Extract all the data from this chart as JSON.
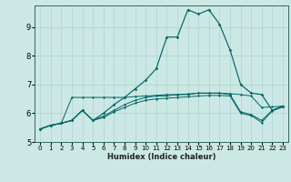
{
  "xlabel": "Humidex (Indice chaleur)",
  "bg_color": "#cce8e4",
  "grid_color": "#b0d8d4",
  "line_color": "#006666",
  "xlim": [
    -0.5,
    23.5
  ],
  "ylim": [
    5.0,
    9.75
  ],
  "xticks": [
    0,
    1,
    2,
    3,
    4,
    5,
    6,
    7,
    8,
    9,
    10,
    11,
    12,
    13,
    14,
    15,
    16,
    17,
    18,
    19,
    20,
    21,
    22,
    23
  ],
  "yticks": [
    5,
    6,
    7,
    8,
    9
  ],
  "line_main_x": [
    0,
    1,
    2,
    3,
    4,
    5,
    6,
    7,
    8,
    9,
    10,
    11,
    12,
    13,
    14,
    15,
    16,
    17,
    18,
    19,
    20,
    21,
    22,
    23
  ],
  "line_main_y": [
    5.45,
    5.58,
    5.65,
    5.75,
    6.1,
    5.75,
    6.0,
    6.3,
    6.55,
    6.85,
    7.15,
    7.55,
    8.65,
    8.65,
    9.6,
    9.45,
    9.6,
    9.1,
    8.2,
    7.0,
    6.7,
    6.65,
    6.1,
    6.25
  ],
  "line_avg_x": [
    0,
    1,
    2,
    3,
    4,
    5,
    6,
    7,
    8,
    9,
    10,
    11,
    12,
    13,
    14,
    15,
    16,
    17,
    18,
    19,
    20,
    21,
    22,
    23
  ],
  "line_avg_y": [
    5.45,
    5.58,
    5.65,
    5.75,
    6.1,
    5.75,
    5.9,
    6.1,
    6.3,
    6.45,
    6.55,
    6.6,
    6.6,
    6.65,
    6.65,
    6.7,
    6.7,
    6.7,
    6.65,
    6.05,
    5.95,
    5.75,
    6.1,
    6.25
  ],
  "line_flat1_x": [
    0,
    1,
    2,
    3,
    4,
    5,
    6,
    7,
    8,
    9,
    10,
    11,
    12,
    13,
    14,
    15,
    16,
    17,
    18,
    19,
    20,
    21,
    22,
    23
  ],
  "line_flat1_y": [
    5.45,
    5.58,
    5.65,
    6.55,
    6.55,
    6.55,
    6.55,
    6.55,
    6.55,
    6.58,
    6.6,
    6.62,
    6.65,
    6.65,
    6.67,
    6.7,
    6.7,
    6.7,
    6.68,
    6.65,
    6.6,
    6.2,
    6.22,
    6.25
  ],
  "line_flat2_x": [
    0,
    1,
    2,
    3,
    4,
    5,
    6,
    7,
    8,
    9,
    10,
    11,
    12,
    13,
    14,
    15,
    16,
    17,
    18,
    19,
    20,
    21,
    22,
    23
  ],
  "line_flat2_y": [
    5.45,
    5.58,
    5.65,
    5.75,
    6.1,
    5.75,
    5.85,
    6.05,
    6.2,
    6.35,
    6.45,
    6.5,
    6.52,
    6.55,
    6.57,
    6.6,
    6.62,
    6.62,
    6.6,
    6.0,
    5.92,
    5.68,
    6.08,
    6.22
  ]
}
